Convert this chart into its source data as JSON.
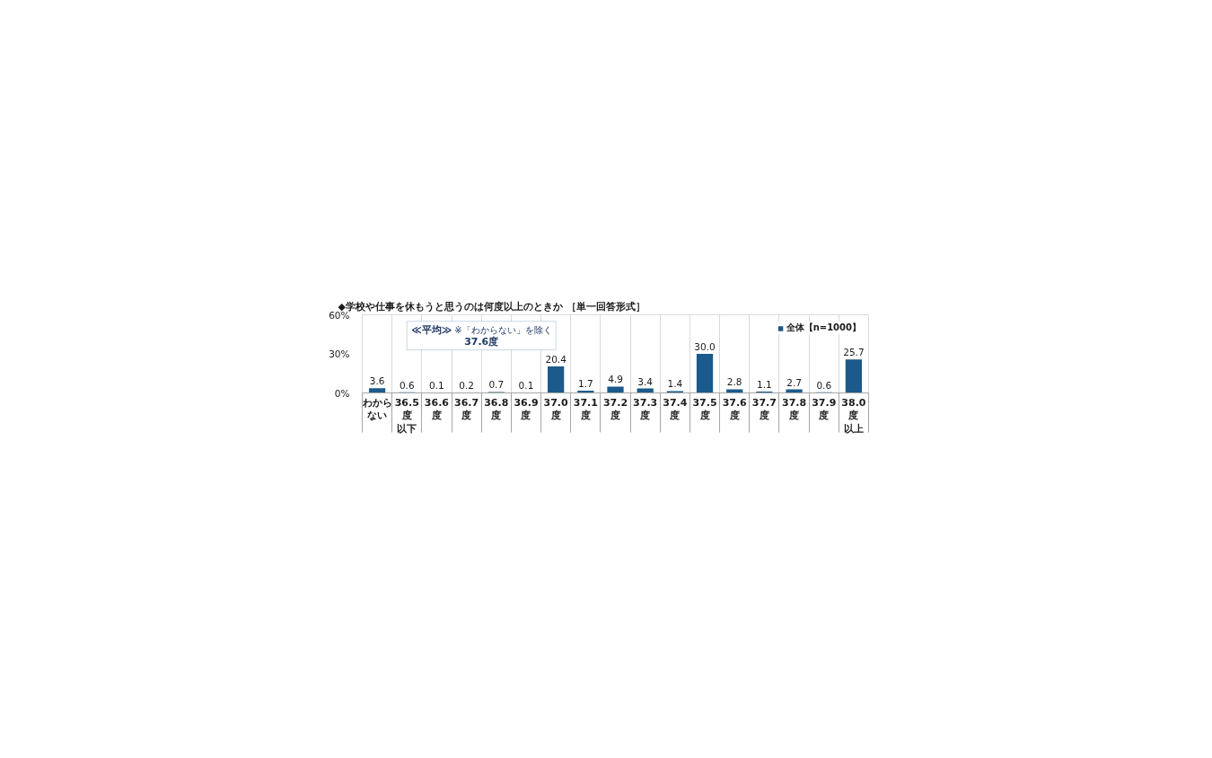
{
  "chart_data": {
    "type": "bar",
    "title": "◆学校や仕事を休もうと思うのは何度以上のときか ［単一回答形式］",
    "categories": [
      "わからない",
      "36.5度以下",
      "36.6度",
      "36.7度",
      "36.8度",
      "36.9度",
      "37.0度",
      "37.1度",
      "37.2度",
      "37.3度",
      "37.4度",
      "37.5度",
      "37.6度",
      "37.7度",
      "37.8度",
      "37.9度",
      "38.0度以上"
    ],
    "series": [
      {
        "name": "全体【n=1000】",
        "color": "#1b5a8a",
        "values": [
          3.6,
          0.6,
          0.1,
          0.2,
          0.7,
          0.1,
          20.4,
          1.7,
          4.9,
          3.4,
          1.4,
          30.0,
          2.8,
          1.1,
          2.7,
          0.6,
          25.7
        ],
        "value_labels": [
          "3.6",
          "0.6",
          "0.1",
          "0.2",
          "0.7",
          "0.1",
          "20.4",
          "1.7",
          "4.9",
          "3.4",
          "1.4",
          "30.0",
          "2.8",
          "1.1",
          "2.7",
          "0.6",
          "25.7"
        ]
      }
    ],
    "ylim": [
      0,
      60
    ],
    "yticks": [
      {
        "value": 0,
        "label": "0%"
      },
      {
        "value": 30,
        "label": "30%"
      },
      {
        "value": 60,
        "label": "60%"
      }
    ],
    "grid": "x",
    "legend": "top right",
    "annotations": [
      "≪平均≫",
      "※「わからない」を除く",
      "37.6度"
    ]
  }
}
